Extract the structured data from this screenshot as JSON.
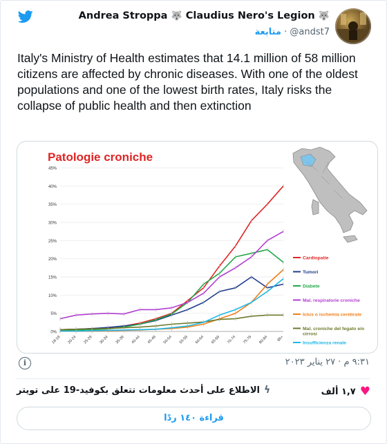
{
  "header": {
    "display_name": "Andrea Stroppa",
    "legion_name": "Claudius Nero's Legion",
    "handle": "@andst7",
    "separator": "·",
    "follow_label": "متابعة"
  },
  "tweet": {
    "text": "Italy's Ministry of Health estimates that 14.1 million of 58 million citizens are affected by chronic diseases. With one of the oldest populations and one of the lowest birth rates, Italy risks the collapse of public health and then extinction"
  },
  "footer": {
    "timestamp": "٩:٣١ م · ٢٧ يناير ٢٠٢٣",
    "likes": "١,٧ ألف",
    "covid_link": "الاطلاع على أحدث معلومات تتعلق بكوفيد-19 على تويتر",
    "replies_button": "قراءة ١٤٠ ردًا"
  },
  "colors": {
    "accent": "#1d9bf0",
    "like": "#f91880"
  },
  "chart_data": {
    "type": "line",
    "title": "Patologie croniche",
    "categories": [
      "18-19",
      "20-24",
      "25-29",
      "30-34",
      "35-39",
      "40-44",
      "45-49",
      "50-54",
      "55-59",
      "60-64",
      "65-69",
      "70-74",
      "75-79",
      "80-84",
      "85+"
    ],
    "y_ticks": [
      "0%",
      "5%",
      "10%",
      "15%",
      "20%",
      "25%",
      "30%",
      "35%",
      "40%",
      "45%"
    ],
    "ylim": [
      0,
      45
    ],
    "legend_position": "right",
    "series": [
      {
        "name": "Cardiopatie",
        "color": "#e02424",
        "values": [
          0.5,
          0.6,
          0.8,
          1.0,
          1.5,
          2.3,
          3.5,
          5.0,
          8.5,
          12.0,
          18.0,
          23.5,
          30.5,
          35.0,
          40.0
        ]
      },
      {
        "name": "Tumori",
        "color": "#1f3c8a",
        "values": [
          0.5,
          0.6,
          0.8,
          1.1,
          1.5,
          2.0,
          3.0,
          4.5,
          6.0,
          8.0,
          11.0,
          12.0,
          15.0,
          12.0,
          13.0
        ]
      },
      {
        "name": "Diabete",
        "color": "#22a84a",
        "values": [
          0.3,
          0.4,
          0.5,
          0.7,
          1.2,
          2.0,
          3.2,
          4.8,
          8.0,
          13.0,
          16.0,
          20.5,
          21.5,
          22.5,
          19.0
        ]
      },
      {
        "name": "Mal. respiratorie croniche",
        "color": "#b23cd1",
        "values": [
          3.5,
          4.5,
          4.8,
          5.0,
          4.8,
          6.0,
          6.0,
          6.5,
          8.0,
          10.5,
          15.0,
          17.5,
          20.5,
          25.0,
          27.5
        ]
      },
      {
        "name": "Ictus o ischemia cerebrale",
        "color": "#ee7f1a",
        "values": [
          0.1,
          0.1,
          0.1,
          0.2,
          0.3,
          0.4,
          0.6,
          0.8,
          1.2,
          2.0,
          3.5,
          5.0,
          8.0,
          13.0,
          17.0
        ]
      },
      {
        "name": "Mal. croniche del fegato e/o cirrosi",
        "color": "#6b7a2a",
        "values": [
          0.5,
          0.6,
          0.7,
          0.8,
          1.0,
          1.2,
          1.5,
          2.0,
          2.3,
          2.6,
          3.3,
          3.5,
          4.2,
          4.5,
          4.5
        ]
      },
      {
        "name": "Insufficienza renale",
        "color": "#1ab7e8",
        "values": [
          0.1,
          0.1,
          0.2,
          0.3,
          0.4,
          0.5,
          0.6,
          1.0,
          1.5,
          2.5,
          4.5,
          6.0,
          8.0,
          11.0,
          14.5
        ]
      }
    ]
  }
}
